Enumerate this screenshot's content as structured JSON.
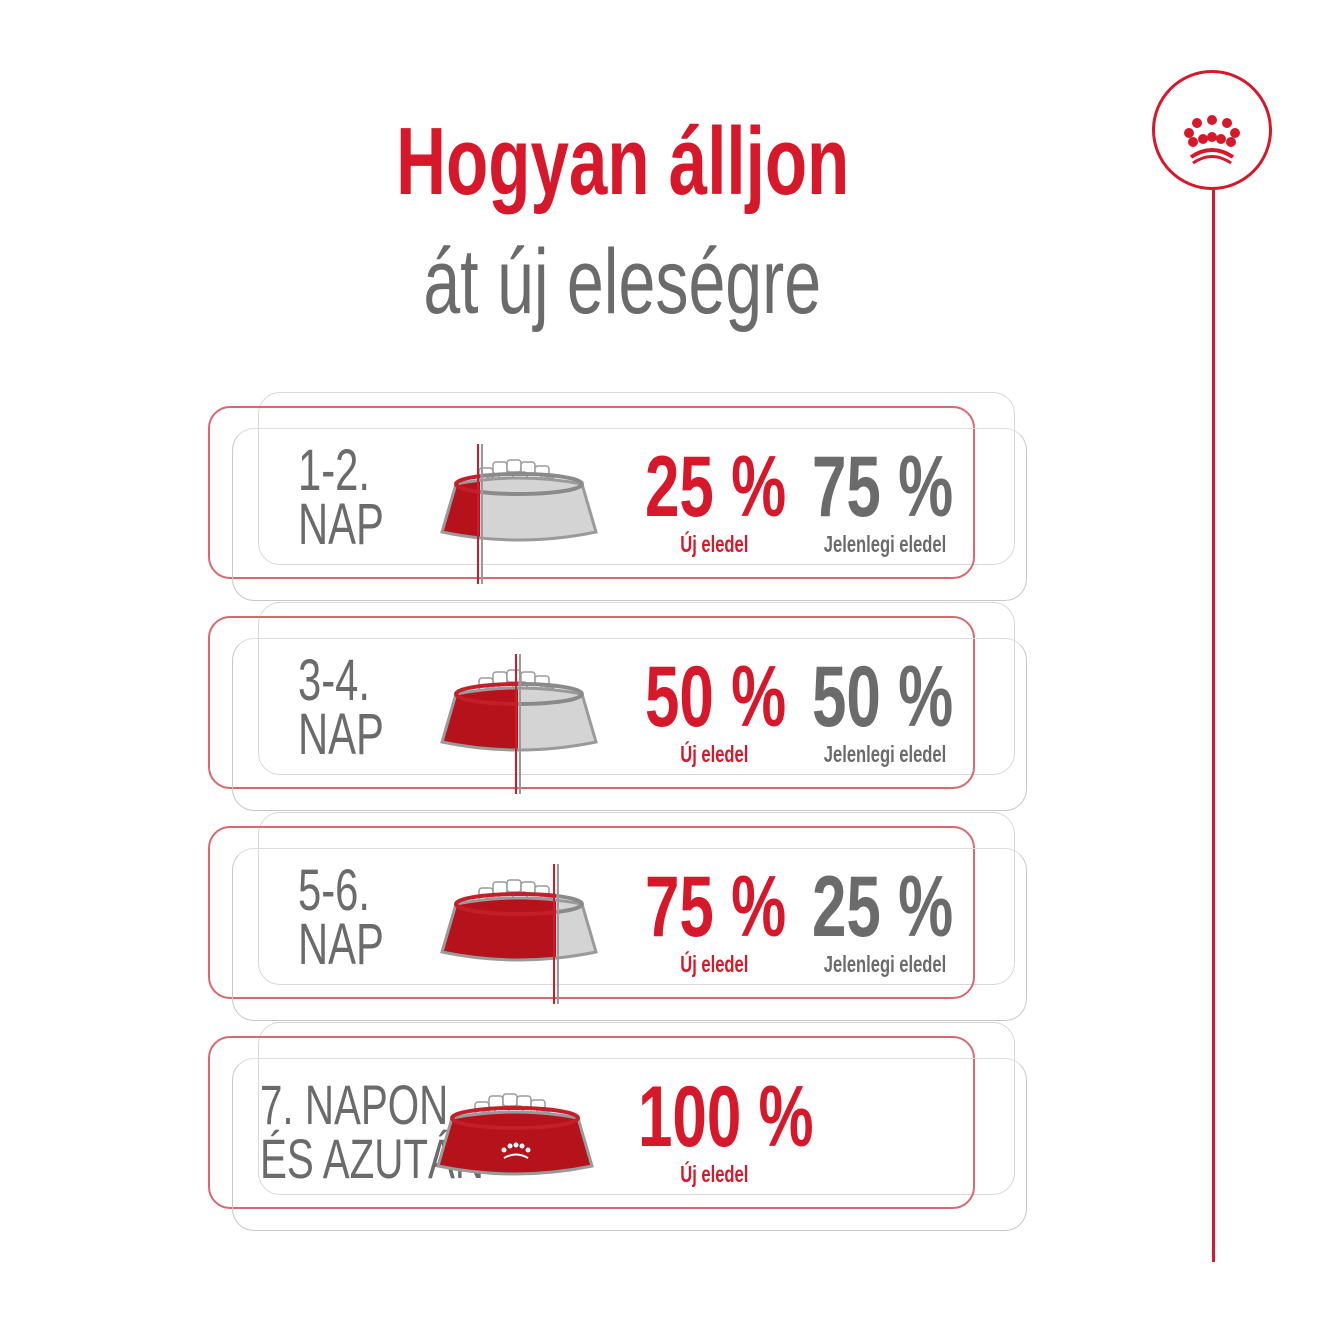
{
  "title": "Hogyan álljon",
  "subtitle": "át új eleségre",
  "colors": {
    "brand_red": "#d7182a",
    "gray_text": "#6b6b6b",
    "bowl_gray": "#d4d4d4"
  },
  "logo": {
    "icon": "royal-canin-crown-icon"
  },
  "steps": [
    {
      "day_line1": "1-2.",
      "day_line2": "NAP",
      "new_pct": "25 %",
      "old_pct": "75 %",
      "new_label": "Új eledel",
      "old_label": "Jelenlegi eledel",
      "new_fraction": 0.25
    },
    {
      "day_line1": "3-4.",
      "day_line2": "NAP",
      "new_pct": "50 %",
      "old_pct": "50 %",
      "new_label": "Új eledel",
      "old_label": "Jelenlegi eledel",
      "new_fraction": 0.5
    },
    {
      "day_line1": "5-6.",
      "day_line2": "NAP",
      "new_pct": "75 %",
      "old_pct": "25 %",
      "new_label": "Új eledel",
      "old_label": "Jelenlegi eledel",
      "new_fraction": 0.75
    },
    {
      "day_line1": "7. NAPON",
      "day_line2": "ÉS AZUTÁN",
      "new_pct": "100 %",
      "new_label": "Új eledel",
      "new_fraction": 1
    }
  ]
}
